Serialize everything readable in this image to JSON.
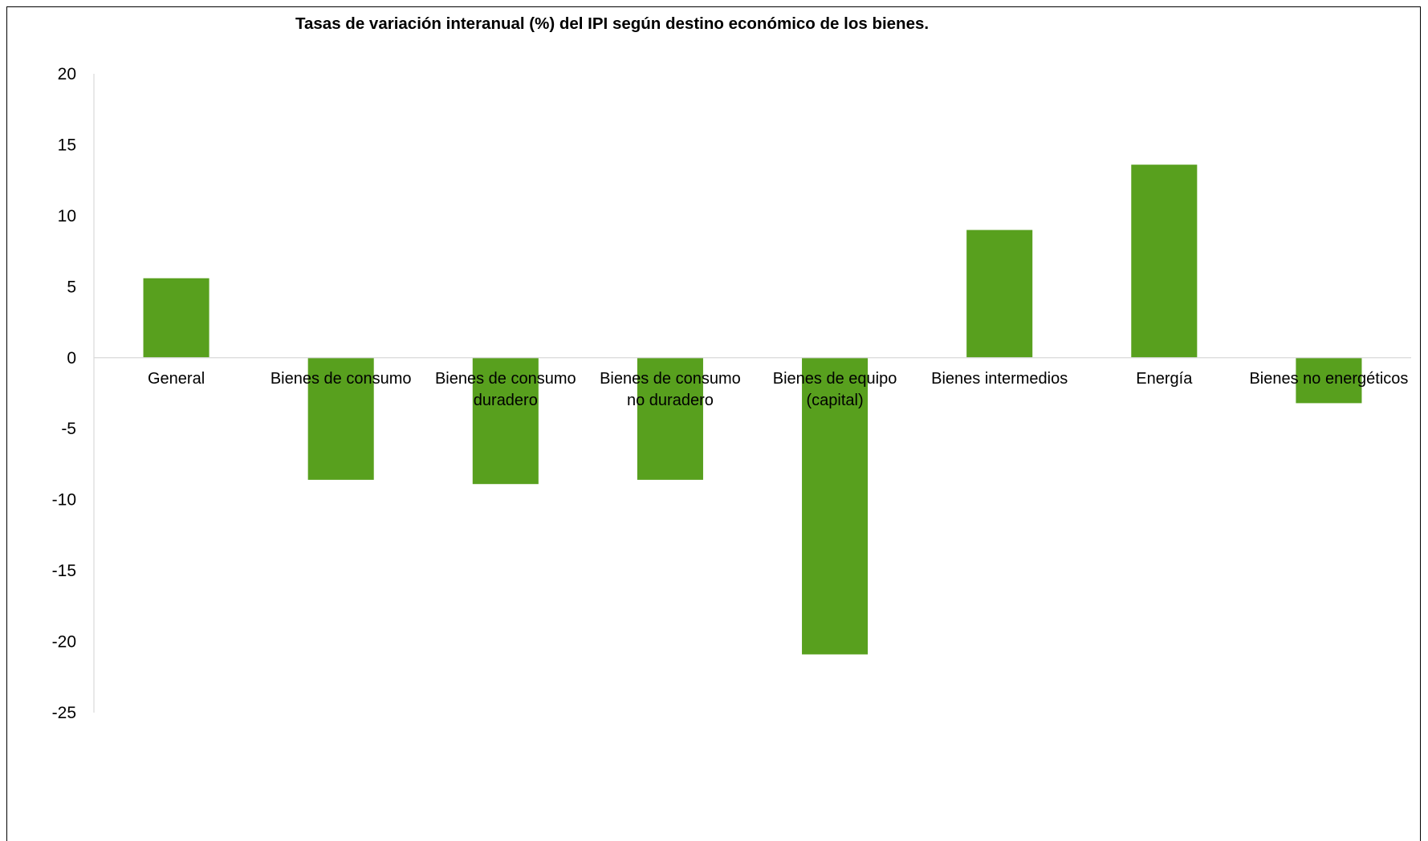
{
  "chart_data": {
    "type": "bar",
    "title": "Tasas de variación interanual (%) del IPI según destino económico de los bienes.",
    "xlabel": "",
    "ylabel": "",
    "ylim": [
      -25,
      20
    ],
    "yticks": [
      20,
      15,
      10,
      5,
      0,
      -5,
      -10,
      -15,
      -20,
      -25
    ],
    "grid": false,
    "legend": "none",
    "bar_color": "#58a01e",
    "categories": [
      [
        "General"
      ],
      [
        "Bienes de consumo"
      ],
      [
        "Bienes de consumo",
        "duradero"
      ],
      [
        "Bienes de consumo",
        "no duradero"
      ],
      [
        "Bienes de equipo",
        "(capital)"
      ],
      [
        "Bienes intermedios"
      ],
      [
        "Energía"
      ],
      [
        "Bienes no energéticos"
      ]
    ],
    "values": [
      5.6,
      -8.6,
      -8.9,
      -8.6,
      -20.9,
      9.0,
      13.6,
      -3.2
    ]
  }
}
